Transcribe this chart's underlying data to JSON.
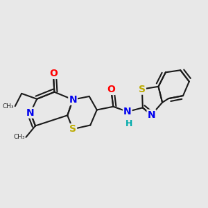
{
  "background_color": "#e8e8e8",
  "bond_color": "#1a1a1a",
  "atom_colors": {
    "O": "#ff0000",
    "N": "#0000ee",
    "S": "#bbaa00",
    "H": "#00aaaa",
    "C": "#1a1a1a"
  },
  "figsize": [
    3.0,
    3.0
  ],
  "dpi": 100
}
